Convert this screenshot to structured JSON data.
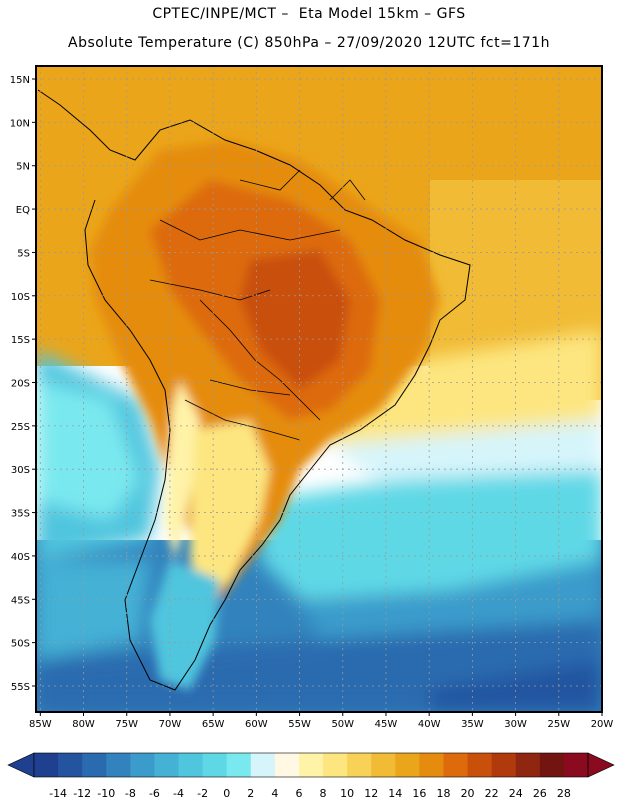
{
  "header": {
    "line1": "CPTEC/INPE/MCT –  Eta Model 15km – GFS",
    "line2": "Absolute Temperature (C) 850hPa – 27/09/2020 12UTC fct=171h"
  },
  "map": {
    "variable": "Absolute Temperature",
    "units": "C",
    "level": "850hPa",
    "lat_labels": [
      "15N",
      "10N",
      "5N",
      "EQ",
      "5S",
      "10S",
      "15S",
      "20S",
      "25S",
      "30S",
      "35S",
      "40S",
      "45S",
      "50S",
      "55S"
    ],
    "lat_values": [
      15,
      10,
      5,
      0,
      -5,
      -10,
      -15,
      -20,
      -25,
      -30,
      -35,
      -40,
      -45,
      -50,
      -55
    ],
    "lon_labels": [
      "85W",
      "80W",
      "75W",
      "70W",
      "65W",
      "60W",
      "55W",
      "50W",
      "45W",
      "40W",
      "35W",
      "30W",
      "25W",
      "20W"
    ],
    "lon_values": [
      -85,
      -80,
      -75,
      -70,
      -65,
      -60,
      -55,
      -50,
      -45,
      -40,
      -35,
      -30,
      -25,
      -20
    ],
    "lat_range": [
      -58,
      16.5
    ],
    "lon_range": [
      -85.5,
      -20
    ]
  },
  "colorbar": {
    "labels": [
      "-14",
      "-12",
      "-10",
      "-8",
      "-6",
      "-4",
      "-2",
      "0",
      "2",
      "4",
      "6",
      "8",
      "10",
      "12",
      "14",
      "16",
      "18",
      "20",
      "22",
      "24",
      "26",
      "28"
    ],
    "colors": [
      "#1f3f8f",
      "#2454a0",
      "#2a6aaf",
      "#3283bd",
      "#3b9bcb",
      "#45b1d5",
      "#50c5de",
      "#5fd8e6",
      "#7ae9ef",
      "#d6f5fb",
      "#fff8e2",
      "#fff3a8",
      "#fde680",
      "#f8d257",
      "#f1bb35",
      "#eba51a",
      "#e58c0e",
      "#dd6b0b",
      "#c9500b",
      "#b03a0c",
      "#8f260f",
      "#72140f",
      "#8a0a20"
    ]
  },
  "palette": {
    "ocean_cold": "#2f6fb0",
    "ocean_mid": "#43b7d9",
    "land_warm": "#e88a14",
    "land_hot": "#c9520b"
  }
}
